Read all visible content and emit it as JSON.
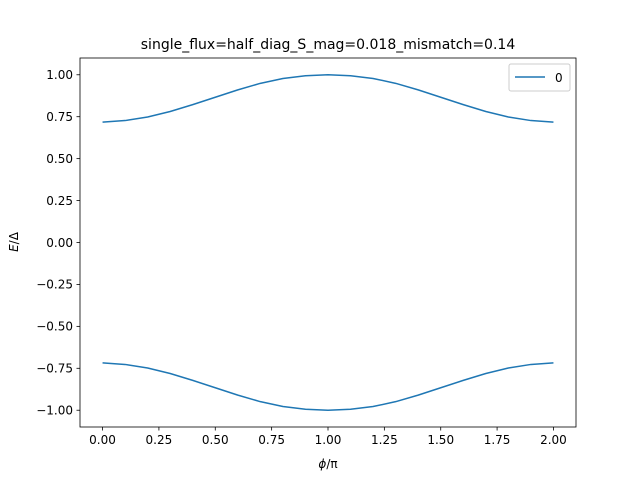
{
  "chart_data": {
    "type": "line",
    "title": "single_flux=half_diag_S_mag=0.018_mismatch=0.14",
    "xlabel_italic": "ϕ",
    "xlabel_rest": "/π",
    "ylabel_italic": "E",
    "ylabel_rest": "/Δ",
    "xlim": [
      -0.1,
      2.1
    ],
    "ylim": [
      -1.1,
      1.1
    ],
    "xticks": [
      0.0,
      0.25,
      0.5,
      0.75,
      1.0,
      1.25,
      1.5,
      1.75,
      2.0
    ],
    "xtick_labels": [
      "0.00",
      "0.25",
      "0.50",
      "0.75",
      "1.00",
      "1.25",
      "1.50",
      "1.75",
      "2.00"
    ],
    "yticks": [
      -1.0,
      -0.75,
      -0.5,
      -0.25,
      0.0,
      0.25,
      0.5,
      0.75,
      1.0
    ],
    "ytick_labels": [
      "−1.00",
      "−0.75",
      "−0.50",
      "−0.25",
      "0.00",
      "0.25",
      "0.50",
      "0.75",
      "1.00"
    ],
    "legend_placement": "top-right",
    "color": "#1f77b4",
    "x": [
      0.0,
      0.1,
      0.2,
      0.3,
      0.4,
      0.5,
      0.6,
      0.7,
      0.8,
      0.9,
      1.0,
      1.1,
      1.2,
      1.3,
      1.4,
      1.5,
      1.6,
      1.7,
      1.8,
      1.9,
      2.0
    ],
    "series": [
      {
        "name": "0",
        "upper": [
          0.718,
          0.727,
          0.748,
          0.781,
          0.822,
          0.866,
          0.91,
          0.949,
          0.978,
          0.994,
          1.0,
          0.994,
          0.978,
          0.949,
          0.91,
          0.866,
          0.822,
          0.781,
          0.748,
          0.727,
          0.718
        ],
        "lower": [
          -0.718,
          -0.727,
          -0.748,
          -0.781,
          -0.822,
          -0.866,
          -0.91,
          -0.949,
          -0.978,
          -0.994,
          -1.0,
          -0.994,
          -0.978,
          -0.949,
          -0.91,
          -0.866,
          -0.822,
          -0.781,
          -0.748,
          -0.727,
          -0.718
        ]
      }
    ]
  }
}
